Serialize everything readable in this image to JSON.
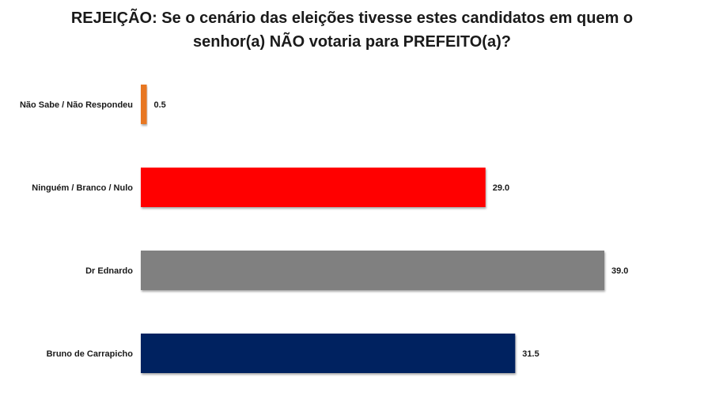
{
  "chart_data": {
    "type": "bar",
    "orientation": "horizontal",
    "title_lines": [
      "REJEIÇÃO: Se o cenário das eleições tivesse estes candidatos em quem o",
      "senhor(a) NÃO votaria para PREFEITO(a)?"
    ],
    "categories": [
      "Não Sabe / Não Respondeu",
      "Ninguém / Branco / Nulo",
      "Dr Ednardo",
      "Bruno de Carrapicho"
    ],
    "values": [
      0.5,
      29.0,
      39.0,
      31.5
    ],
    "value_labels": [
      "0.5",
      "29.0",
      "39.0",
      "31.5"
    ],
    "colors": [
      "#E87722",
      "#FF0000",
      "#808080",
      "#002060"
    ],
    "xlim": [
      0,
      39.0
    ],
    "grid": false,
    "legend": "none"
  }
}
